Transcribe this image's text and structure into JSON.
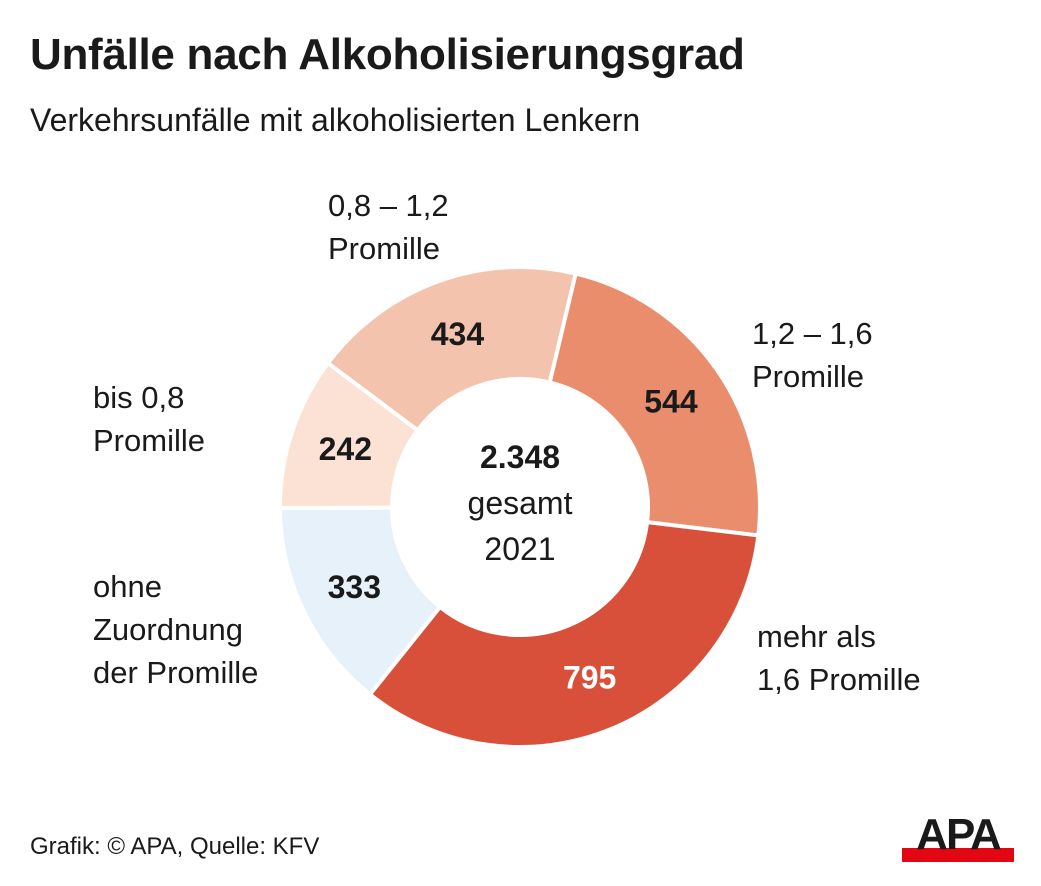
{
  "title": "Unfälle nach Alkoholisierungsgrad",
  "subtitle": "Verkehrsunfälle mit alkoholisierten Lenkern",
  "chart_data": {
    "type": "pie",
    "variant": "donut",
    "title": "Unfälle nach Alkoholisierungsgrad",
    "subtitle": "Verkehrsunfälle mit alkoholisierten Lenkern",
    "center_label": {
      "value": "2.348",
      "line2": "gesamt",
      "line3": "2021"
    },
    "categories": [
      "1,2 – 1,6\nPromille",
      "mehr als\n1,6 Promille",
      "ohne\nZuordnung\nder Promille",
      "bis 0,8\nPromille",
      "0,8 – 1,2\nPromille"
    ],
    "values": [
      544,
      795,
      333,
      242,
      434
    ],
    "value_labels": [
      "544",
      "795",
      "333",
      "242",
      "434"
    ],
    "colors": [
      "#e98d6d",
      "#d9503a",
      "#e7f1f9",
      "#fbe2d5",
      "#f4c3ad"
    ],
    "label_colors": [
      "#1a1a1a",
      "#ffffff",
      "#1a1a1a",
      "#1a1a1a",
      "#1a1a1a"
    ],
    "start_angle_deg": 13.4,
    "direction": "clockwise",
    "legend": "none"
  },
  "source": "Grafik: © APA, Quelle: KFV",
  "logo": {
    "text": "APA",
    "colors": [
      "#1a1a1a",
      "#e30613"
    ]
  }
}
